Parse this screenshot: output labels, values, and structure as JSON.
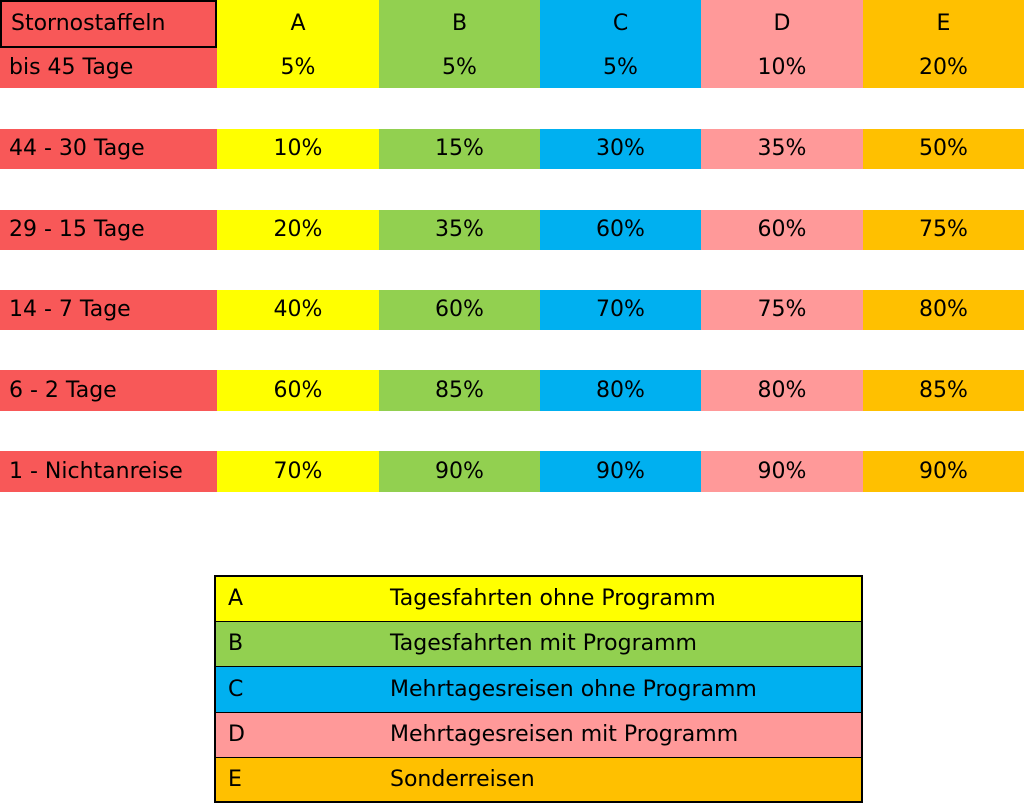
{
  "colors": {
    "label": "#f85858",
    "A": "#ffff00",
    "B": "#92d050",
    "C": "#00b0f0",
    "D": "#ff9999",
    "E": "#ffc000"
  },
  "table": {
    "title": "Stornostaffeln",
    "columns": [
      "A",
      "B",
      "C",
      "D",
      "E"
    ],
    "rows": [
      {
        "label": "bis 45 Tage",
        "values": [
          "5%",
          "5%",
          "5%",
          "10%",
          "20%"
        ]
      },
      {
        "label": "44 - 30 Tage",
        "values": [
          "10%",
          "15%",
          "30%",
          "35%",
          "50%"
        ]
      },
      {
        "label": "29 - 15 Tage",
        "values": [
          "20%",
          "35%",
          "60%",
          "60%",
          "75%"
        ]
      },
      {
        "label": "14 - 7 Tage",
        "values": [
          "40%",
          "60%",
          "70%",
          "75%",
          "80%"
        ]
      },
      {
        "label": "6 - 2 Tage",
        "values": [
          "60%",
          "85%",
          "80%",
          "80%",
          "85%"
        ]
      },
      {
        "label": "1 - Nichtanreise",
        "values": [
          "70%",
          "90%",
          "90%",
          "90%",
          "90%"
        ]
      }
    ]
  },
  "legend": [
    {
      "key": "A",
      "text": "Tagesfahrten ohne Programm"
    },
    {
      "key": "B",
      "text": "Tagesfahrten mit Programm"
    },
    {
      "key": "C",
      "text": "Mehrtagesreisen ohne Programm"
    },
    {
      "key": "D",
      "text": "Mehrtagesreisen mit Programm"
    },
    {
      "key": "E",
      "text": "Sonderreisen"
    }
  ]
}
